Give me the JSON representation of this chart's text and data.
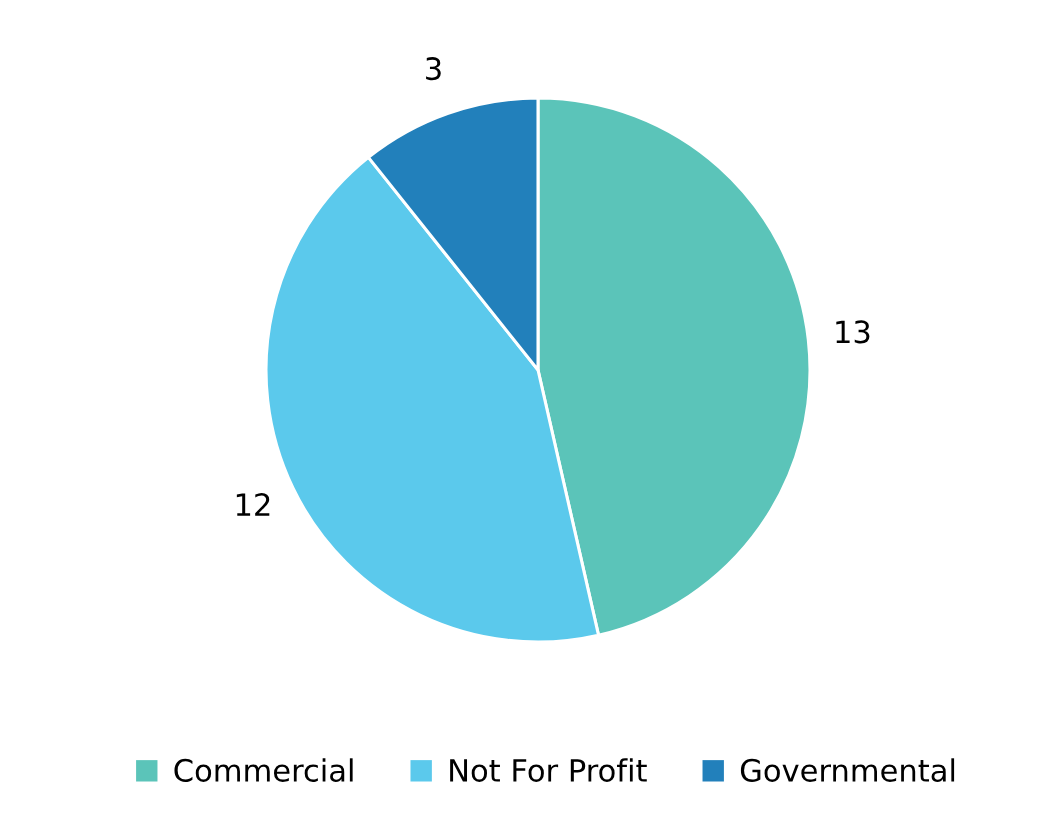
{
  "chart_data": {
    "type": "pie",
    "categories": [
      "Commercial",
      "Not For Profit",
      "Governmental"
    ],
    "values": [
      13,
      12,
      3
    ],
    "colors": [
      "#5bc4b9",
      "#5bc9ec",
      "#2280bb"
    ],
    "data_labels": true,
    "legend": "bottom"
  }
}
